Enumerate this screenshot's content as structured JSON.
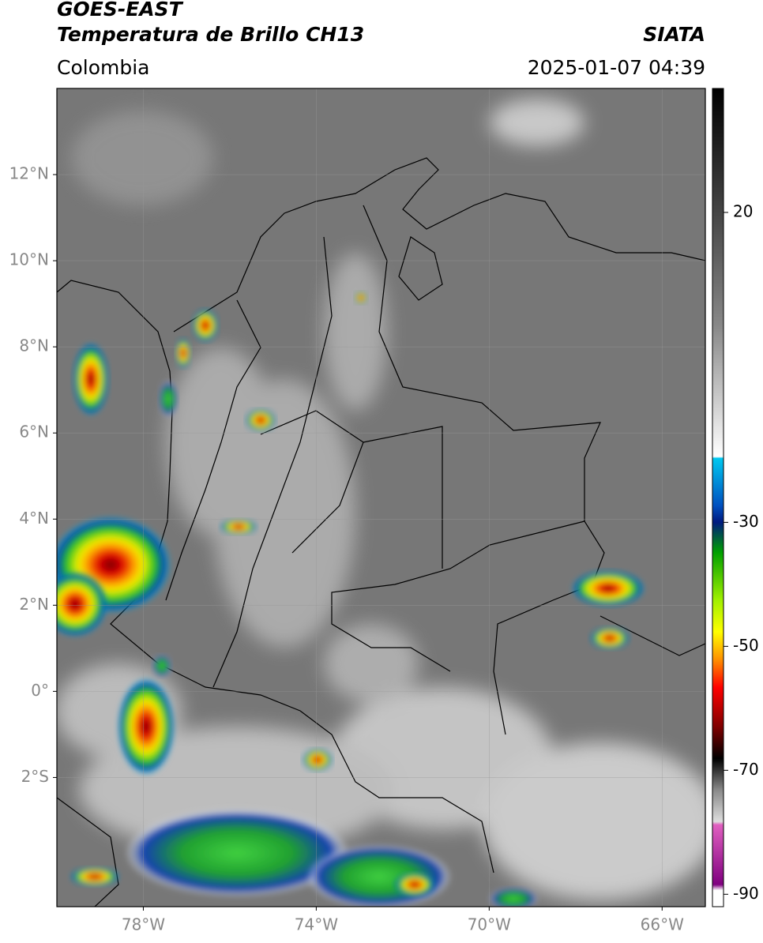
{
  "header": {
    "satellite": "GOES-EAST",
    "product": "Temperatura de Brillo CH13",
    "source": "SIATA",
    "region": "Colombia",
    "datetime": "2025-01-07 04:39"
  },
  "map": {
    "lonlim": [
      -80,
      -65
    ],
    "latlim": [
      -5,
      14
    ],
    "xticks": [
      {
        "value": -78,
        "label": "78°W"
      },
      {
        "value": -74,
        "label": "74°W"
      },
      {
        "value": -70,
        "label": "70°W"
      },
      {
        "value": -66,
        "label": "66°W"
      }
    ],
    "yticks": [
      {
        "value": 12,
        "label": "12°N"
      },
      {
        "value": 10,
        "label": "10°N"
      },
      {
        "value": 8,
        "label": "8°N"
      },
      {
        "value": 6,
        "label": "6°N"
      },
      {
        "value": 4,
        "label": "4°N"
      },
      {
        "value": 2,
        "label": "2°N"
      },
      {
        "value": 0,
        "label": "0°"
      },
      {
        "value": -2,
        "label": "2°S"
      }
    ],
    "grid": true
  },
  "colorbar": {
    "lim": [
      -92,
      40
    ],
    "ticks": [
      20,
      -30,
      -50,
      -70,
      -90
    ]
  }
}
